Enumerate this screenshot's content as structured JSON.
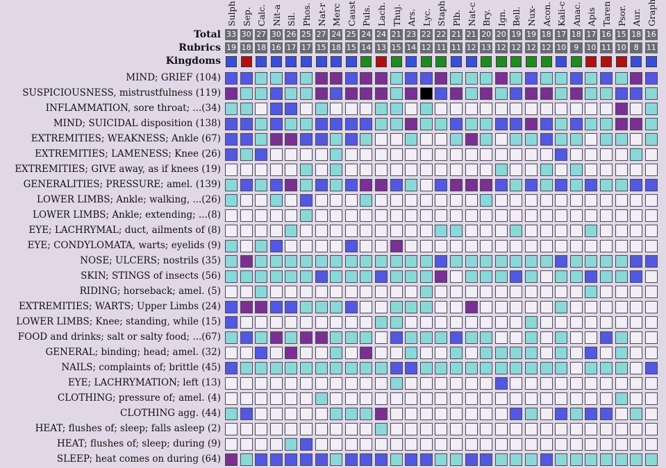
{
  "colors": {
    "grade_0": "#f2eef6",
    "grade_1": "#8ad8d8",
    "grade_2": "#5258e0",
    "grade_3": "#7a3090",
    "grade_4": "#000000",
    "kingdom_mineral": "#3a4fd8",
    "kingdom_animal": "#b01010",
    "kingdom_plant": "#1f8a1f",
    "number_bg": "#6b6b73"
  },
  "header": {
    "total_label": "Total",
    "rubrics_label": "Rubrics",
    "kingdoms_label": "Kingdoms"
  },
  "remedies": [
    {
      "name": "Sulph",
      "total": "33",
      "rubrics": "19",
      "kingdom": "mineral"
    },
    {
      "name": "Sep.",
      "total": "30",
      "rubrics": "18",
      "kingdom": "animal"
    },
    {
      "name": "Calc.",
      "total": "27",
      "rubrics": "18",
      "kingdom": "mineral"
    },
    {
      "name": "Nit-a",
      "total": "30",
      "rubrics": "16",
      "kingdom": "mineral"
    },
    {
      "name": "Sil.",
      "total": "26",
      "rubrics": "17",
      "kingdom": "mineral"
    },
    {
      "name": "Phos.",
      "total": "25",
      "rubrics": "17",
      "kingdom": "mineral"
    },
    {
      "name": "Nat-r",
      "total": "27",
      "rubrics": "15",
      "kingdom": "mineral"
    },
    {
      "name": "Merc",
      "total": "24",
      "rubrics": "18",
      "kingdom": "mineral"
    },
    {
      "name": "Caust",
      "total": "25",
      "rubrics": "15",
      "kingdom": "mineral"
    },
    {
      "name": "Puls.",
      "total": "24",
      "rubrics": "14",
      "kingdom": "plant"
    },
    {
      "name": "Lach.",
      "total": "24",
      "rubrics": "13",
      "kingdom": "animal"
    },
    {
      "name": "Thuj.",
      "total": "21",
      "rubrics": "15",
      "kingdom": "plant"
    },
    {
      "name": "Ars.",
      "total": "23",
      "rubrics": "14",
      "kingdom": "mineral"
    },
    {
      "name": "Lyc.",
      "total": "22",
      "rubrics": "12",
      "kingdom": "plant"
    },
    {
      "name": "Staph",
      "total": "22",
      "rubrics": "11",
      "kingdom": "plant"
    },
    {
      "name": "Plb.",
      "total": "21",
      "rubrics": "11",
      "kingdom": "mineral"
    },
    {
      "name": "Nat-c",
      "total": "21",
      "rubrics": "12",
      "kingdom": "mineral"
    },
    {
      "name": "Bry.",
      "total": "20",
      "rubrics": "13",
      "kingdom": "plant"
    },
    {
      "name": "Ign.",
      "total": "20",
      "rubrics": "12",
      "kingdom": "plant"
    },
    {
      "name": "Bell.",
      "total": "19",
      "rubrics": "12",
      "kingdom": "plant"
    },
    {
      "name": "Nux-",
      "total": "19",
      "rubrics": "12",
      "kingdom": "plant"
    },
    {
      "name": "Acon.",
      "total": "18",
      "rubrics": "12",
      "kingdom": "plant"
    },
    {
      "name": "Kali-c",
      "total": "17",
      "rubrics": "10",
      "kingdom": "mineral"
    },
    {
      "name": "Anac.",
      "total": "18",
      "rubrics": "9",
      "kingdom": "plant"
    },
    {
      "name": "Apis",
      "total": "17",
      "rubrics": "10",
      "kingdom": "animal"
    },
    {
      "name": "Taren",
      "total": "16",
      "rubrics": "11",
      "kingdom": "animal"
    },
    {
      "name": "Psor.",
      "total": "15",
      "rubrics": "10",
      "kingdom": "animal"
    },
    {
      "name": "Aur.",
      "total": "18",
      "rubrics": "8",
      "kingdom": "mineral"
    },
    {
      "name": "Graph",
      "total": "16",
      "rubrics": "11",
      "kingdom": "mineral"
    }
  ],
  "rubrics": [
    {
      "label": "MIND; GRIEF (104)",
      "grades": [
        2,
        2,
        1,
        1,
        2,
        1,
        3,
        3,
        2,
        3,
        3,
        1,
        2,
        2,
        3,
        1,
        1,
        1,
        3,
        1,
        2,
        1,
        1,
        2,
        1,
        2,
        1,
        3,
        2
      ]
    },
    {
      "label": "SUSPICIOUSNESS, mistrustfulness (119)",
      "grades": [
        3,
        1,
        1,
        2,
        1,
        1,
        3,
        2,
        3,
        3,
        3,
        1,
        3,
        4,
        2,
        3,
        1,
        3,
        1,
        2,
        3,
        3,
        1,
        3,
        1,
        1,
        2,
        2,
        1
      ]
    },
    {
      "label": "INFLAMMATION, sore throat; ...(34)",
      "grades": [
        1,
        1,
        0,
        2,
        2,
        0,
        1,
        0,
        0,
        0,
        1,
        1,
        0,
        1,
        0,
        0,
        0,
        0,
        0,
        0,
        0,
        0,
        0,
        0,
        0,
        0,
        3,
        0,
        1
      ]
    },
    {
      "label": "MIND; SUICIDAL disposition (138)",
      "grades": [
        2,
        2,
        1,
        2,
        1,
        1,
        2,
        2,
        2,
        2,
        1,
        1,
        3,
        1,
        1,
        2,
        1,
        1,
        2,
        2,
        3,
        2,
        1,
        2,
        1,
        1,
        3,
        3,
        1
      ]
    },
    {
      "label": "EXTREMITIES; WEAKNESS; Ankle (67)",
      "grades": [
        2,
        2,
        1,
        3,
        3,
        2,
        2,
        1,
        2,
        1,
        0,
        0,
        1,
        0,
        0,
        1,
        3,
        1,
        0,
        1,
        1,
        2,
        1,
        1,
        0,
        1,
        1,
        0,
        1
      ]
    },
    {
      "label": "EXTREMITIES; LAMENESS; Knee (26)",
      "grades": [
        2,
        1,
        2,
        0,
        0,
        0,
        0,
        1,
        0,
        0,
        0,
        0,
        0,
        0,
        0,
        0,
        0,
        0,
        0,
        0,
        0,
        0,
        2,
        0,
        0,
        0,
        0,
        1,
        0
      ]
    },
    {
      "label": "EXTREMITIES; GIVE away, as if knees (19)",
      "grades": [
        0,
        0,
        0,
        0,
        0,
        1,
        0,
        1,
        0,
        0,
        0,
        0,
        0,
        0,
        0,
        0,
        0,
        0,
        1,
        0,
        0,
        1,
        0,
        1,
        0,
        0,
        0,
        0,
        0
      ]
    },
    {
      "label": "GENERALITIES; PRESSURE; amel. (139)",
      "grades": [
        1,
        2,
        1,
        2,
        3,
        1,
        2,
        1,
        2,
        3,
        3,
        2,
        1,
        0,
        2,
        3,
        3,
        3,
        2,
        1,
        2,
        1,
        2,
        1,
        2,
        1,
        1,
        2,
        2
      ]
    },
    {
      "label": "LOWER LIMBS; Ankle; walking, ...(26)",
      "grades": [
        1,
        0,
        0,
        1,
        0,
        2,
        0,
        0,
        0,
        1,
        0,
        0,
        0,
        0,
        0,
        0,
        0,
        1,
        0,
        0,
        0,
        0,
        0,
        0,
        0,
        0,
        0,
        0,
        0
      ]
    },
    {
      "label": "LOWER LIMBS; Ankle; extending; ...(8)",
      "grades": [
        0,
        0,
        0,
        0,
        0,
        1,
        0,
        0,
        0,
        0,
        0,
        0,
        0,
        0,
        0,
        0,
        0,
        0,
        0,
        0,
        0,
        0,
        0,
        0,
        0,
        0,
        0,
        0,
        0
      ]
    },
    {
      "label": "EYE; LACHRYMAL; duct, ailments of (8)",
      "grades": [
        0,
        0,
        0,
        0,
        1,
        0,
        0,
        0,
        0,
        0,
        0,
        0,
        0,
        0,
        1,
        1,
        0,
        0,
        0,
        1,
        0,
        0,
        0,
        0,
        1,
        0,
        0,
        0,
        0
      ]
    },
    {
      "label": "EYE; CONDYLOMATA, warts; eyelids (9)",
      "grades": [
        1,
        0,
        1,
        2,
        0,
        0,
        0,
        0,
        2,
        0,
        0,
        3,
        0,
        0,
        0,
        0,
        0,
        0,
        0,
        0,
        0,
        0,
        0,
        0,
        0,
        0,
        0,
        0,
        0
      ]
    },
    {
      "label": "NOSE; ULCERS; nostrils (35)",
      "grades": [
        1,
        3,
        1,
        1,
        1,
        1,
        1,
        1,
        1,
        1,
        1,
        1,
        1,
        1,
        2,
        1,
        1,
        1,
        1,
        1,
        1,
        1,
        2,
        1,
        1,
        1,
        1,
        2,
        2
      ]
    },
    {
      "label": "SKIN; STINGS of insects (56)",
      "grades": [
        1,
        1,
        1,
        1,
        1,
        1,
        2,
        1,
        1,
        1,
        2,
        1,
        1,
        1,
        3,
        0,
        1,
        1,
        1,
        2,
        1,
        0,
        1,
        1,
        2,
        1,
        1,
        2,
        0
      ]
    },
    {
      "label": "RIDING; horseback; amel. (5)",
      "grades": [
        0,
        0,
        1,
        0,
        0,
        0,
        0,
        0,
        0,
        0,
        0,
        0,
        0,
        1,
        0,
        0,
        0,
        0,
        0,
        0,
        0,
        0,
        0,
        0,
        1,
        0,
        0,
        0,
        0
      ]
    },
    {
      "label": "EXTREMITIES; WARTS; Upper Limbs (24)",
      "grades": [
        2,
        3,
        3,
        2,
        2,
        1,
        1,
        1,
        2,
        0,
        0,
        1,
        1,
        1,
        0,
        0,
        3,
        0,
        0,
        0,
        0,
        0,
        1,
        0,
        0,
        0,
        0,
        0,
        0
      ]
    },
    {
      "label": "LOWER LIMBS; Knee; standing, while (15)",
      "grades": [
        2,
        0,
        0,
        0,
        0,
        0,
        0,
        0,
        0,
        0,
        1,
        1,
        0,
        0,
        0,
        0,
        0,
        0,
        0,
        0,
        1,
        0,
        0,
        0,
        0,
        0,
        0,
        0,
        0
      ]
    },
    {
      "label": "FOOD and drinks; salt or salty food; ...(67)",
      "grades": [
        1,
        2,
        1,
        3,
        1,
        3,
        3,
        1,
        1,
        1,
        0,
        2,
        1,
        1,
        1,
        2,
        1,
        1,
        0,
        0,
        1,
        0,
        1,
        0,
        0,
        2,
        1,
        0,
        0
      ]
    },
    {
      "label": "GENERAL; binding; head; amel. (32)",
      "grades": [
        0,
        0,
        2,
        0,
        3,
        0,
        0,
        1,
        0,
        3,
        0,
        0,
        1,
        0,
        0,
        1,
        0,
        1,
        1,
        1,
        1,
        0,
        1,
        0,
        2,
        0,
        1,
        0,
        0
      ]
    },
    {
      "label": "NAILS; complaints of; brittle (45)",
      "grades": [
        2,
        1,
        1,
        1,
        1,
        1,
        1,
        1,
        1,
        1,
        1,
        2,
        2,
        1,
        1,
        1,
        1,
        1,
        1,
        1,
        1,
        1,
        1,
        0,
        1,
        1,
        1,
        0,
        2
      ]
    },
    {
      "label": "EYE; LACHRYMATION; left (13)",
      "grades": [
        0,
        0,
        0,
        0,
        0,
        0,
        0,
        0,
        0,
        0,
        0,
        1,
        0,
        0,
        0,
        0,
        0,
        0,
        2,
        0,
        0,
        0,
        0,
        0,
        0,
        0,
        0,
        0,
        0
      ]
    },
    {
      "label": "CLOTHING; pressure of; amel. (4)",
      "grades": [
        0,
        0,
        0,
        0,
        0,
        0,
        1,
        0,
        0,
        0,
        0,
        0,
        0,
        0,
        0,
        0,
        0,
        0,
        0,
        0,
        0,
        0,
        0,
        0,
        0,
        0,
        1,
        0,
        0
      ]
    },
    {
      "label": "CLOTHING agg. (44)",
      "grades": [
        1,
        2,
        0,
        0,
        0,
        0,
        0,
        1,
        1,
        1,
        3,
        0,
        0,
        0,
        0,
        0,
        0,
        0,
        0,
        2,
        1,
        0,
        2,
        1,
        2,
        2,
        0,
        1,
        0
      ]
    },
    {
      "label": "HEAT; flushes of; sleep; falls asleep (2)",
      "grades": [
        0,
        0,
        0,
        0,
        0,
        0,
        0,
        0,
        0,
        0,
        1,
        0,
        0,
        0,
        0,
        0,
        0,
        0,
        0,
        0,
        0,
        0,
        0,
        0,
        0,
        0,
        0,
        0,
        0
      ]
    },
    {
      "label": "HEAT; flushes of; sleep; during (9)",
      "grades": [
        0,
        0,
        0,
        0,
        1,
        2,
        0,
        0,
        0,
        0,
        0,
        0,
        0,
        0,
        0,
        0,
        0,
        0,
        0,
        0,
        0,
        0,
        0,
        0,
        0,
        0,
        0,
        0,
        0
      ]
    },
    {
      "label": "SLEEP; heat comes on during (64)",
      "grades": [
        3,
        1,
        2,
        2,
        2,
        2,
        2,
        1,
        2,
        2,
        2,
        1,
        2,
        2,
        1,
        1,
        2,
        2,
        1,
        1,
        1,
        2,
        1,
        1,
        1,
        1,
        1,
        1,
        1
      ]
    }
  ]
}
